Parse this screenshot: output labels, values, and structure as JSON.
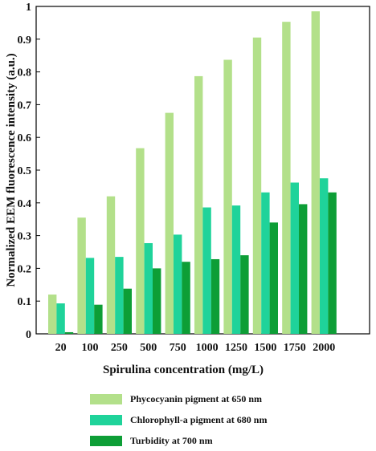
{
  "chart_data": {
    "type": "bar",
    "xlabel": "Spirulina concentration (mg/L)",
    "ylabel": "Normalized EEM fluorescence intensity (a.u.)",
    "ylim": [
      0,
      1
    ],
    "yticks": [
      "0",
      "0.1",
      "0.2",
      "0.3",
      "0.4",
      "0.5",
      "0.6",
      "0.7",
      "0.8",
      "0.9",
      "1"
    ],
    "categories": [
      "20",
      "100",
      "250",
      "500",
      "750",
      "1000",
      "1250",
      "1500",
      "1750",
      "2000"
    ],
    "legend_position": "bottom",
    "grid": false,
    "series": [
      {
        "name": "Phycocyanin pigment at 650 nm",
        "color": "#b3e08a",
        "values": [
          0.12,
          0.355,
          0.42,
          0.567,
          0.675,
          0.787,
          0.837,
          0.905,
          0.953,
          0.985
        ]
      },
      {
        "name": "Chlorophyll-a pigment at 680 nm",
        "color": "#1fd39a",
        "values": [
          0.093,
          0.232,
          0.235,
          0.277,
          0.303,
          0.386,
          0.392,
          0.432,
          0.462,
          0.475
        ]
      },
      {
        "name": "Turbidity at 700 nm",
        "color": "#0d9e36",
        "values": [
          0.005,
          0.089,
          0.138,
          0.2,
          0.22,
          0.228,
          0.24,
          0.34,
          0.396,
          0.432
        ]
      }
    ]
  }
}
